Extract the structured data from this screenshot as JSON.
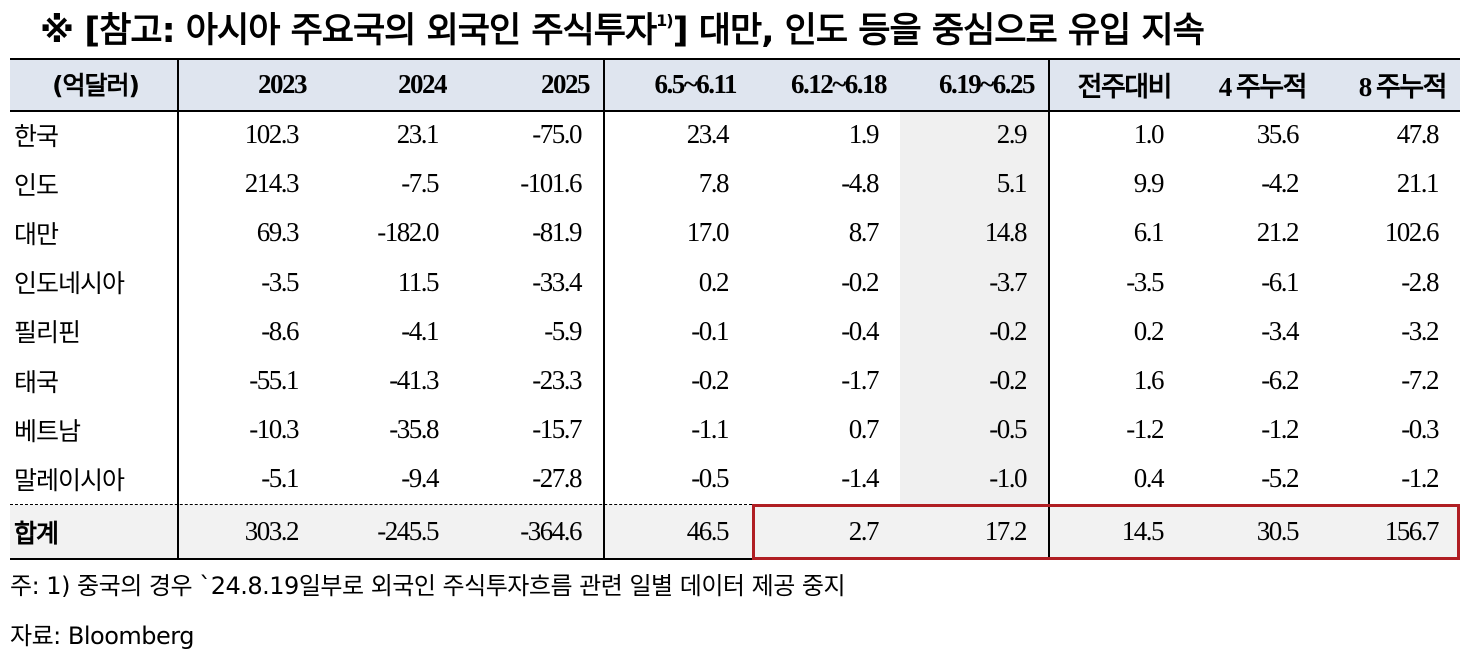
{
  "title": {
    "main": "※ [참고: 아시아 주요국의 외국인 주식투자",
    "sup": "1)",
    "rest": "] 대만, 인도 등을 중심으로 유입 지속"
  },
  "table": {
    "header": [
      "(억달러)",
      "2023",
      "2024",
      "2025",
      "6.5~6.11",
      "6.12~6.18",
      "6.19~6.25",
      "전주대비",
      "4 주누적",
      "8 주누적"
    ],
    "rows": [
      [
        "한국",
        "102.3",
        "23.1",
        "-75.0",
        "23.4",
        "1.9",
        "2.9",
        "1.0",
        "35.6",
        "47.8"
      ],
      [
        "인도",
        "214.3",
        "-7.5",
        "-101.6",
        "7.8",
        "-4.8",
        "5.1",
        "9.9",
        "-4.2",
        "21.1"
      ],
      [
        "대만",
        "69.3",
        "-182.0",
        "-81.9",
        "17.0",
        "8.7",
        "14.8",
        "6.1",
        "21.2",
        "102.6"
      ],
      [
        "인도네시아",
        "-3.5",
        "11.5",
        "-33.4",
        "0.2",
        "-0.2",
        "-3.7",
        "-3.5",
        "-6.1",
        "-2.8"
      ],
      [
        "필리핀",
        "-8.6",
        "-4.1",
        "-5.9",
        "-0.1",
        "-0.4",
        "-0.2",
        "0.2",
        "-3.4",
        "-3.2"
      ],
      [
        "태국",
        "-55.1",
        "-41.3",
        "-23.3",
        "-0.2",
        "-1.7",
        "-0.2",
        "1.6",
        "-6.2",
        "-7.2"
      ],
      [
        "베트남",
        "-10.3",
        "-35.8",
        "-15.7",
        "-1.1",
        "0.7",
        "-0.5",
        "-1.2",
        "-1.2",
        "-0.3"
      ],
      [
        "말레이시아",
        "-5.1",
        "-9.4",
        "-27.8",
        "-0.5",
        "-1.4",
        "-1.0",
        "0.4",
        "-5.2",
        "-1.2"
      ]
    ],
    "total": [
      "합계",
      "303.2",
      "-245.5",
      "-364.6",
      "46.5",
      "2.7",
      "17.2",
      "14.5",
      "30.5",
      "156.7"
    ]
  },
  "notes": [
    "주: 1) 중국의 경우 `24.8.19일부로 외국인 주식투자흐름 관련 일별 데이터 제공 중지",
    "자료: Bloomberg"
  ]
}
